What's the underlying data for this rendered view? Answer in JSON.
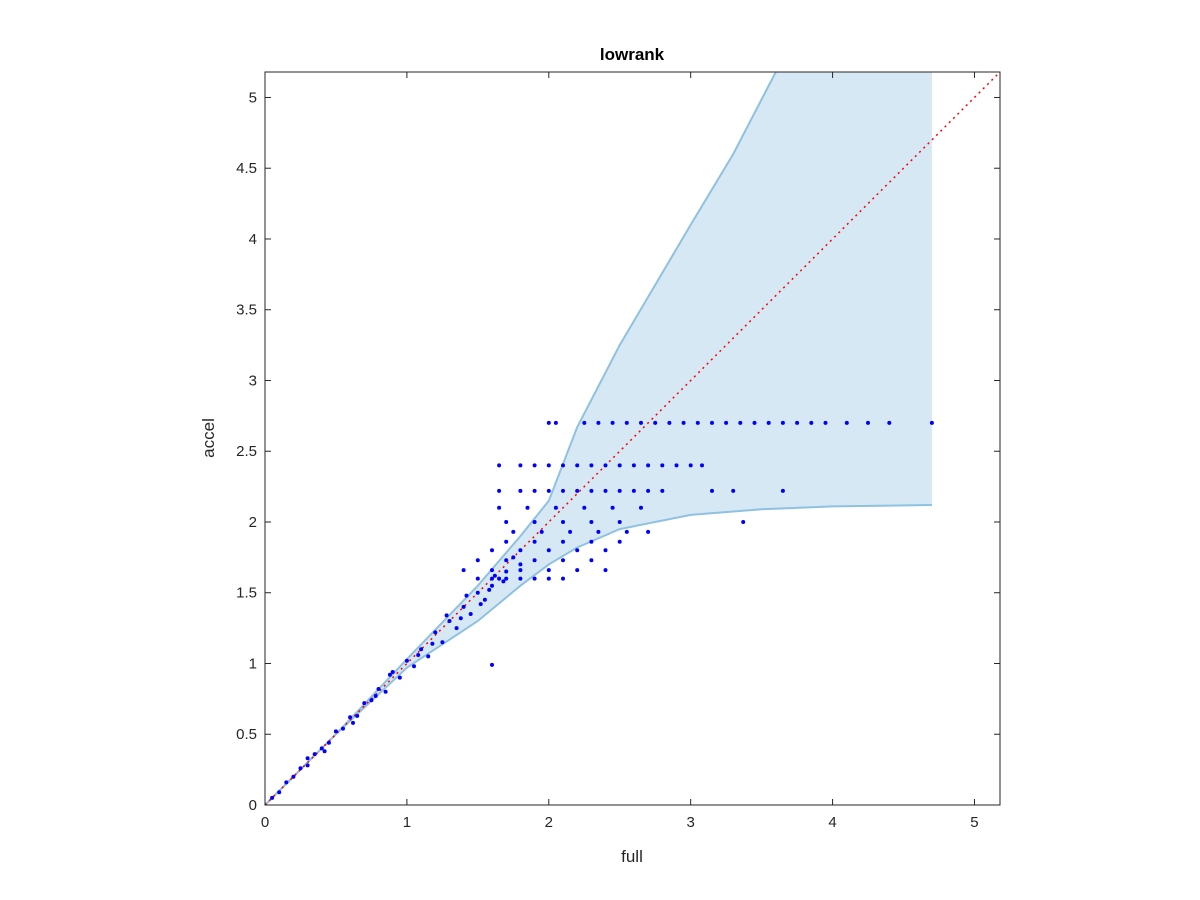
{
  "chart_data": {
    "type": "scatter",
    "title": "lowrank",
    "xlabel": "full",
    "ylabel": "accel",
    "xlim": [
      0,
      5.18
    ],
    "ylim": [
      0,
      5.18
    ],
    "xticks": [
      0,
      1,
      2,
      3,
      4,
      5
    ],
    "yticks": [
      0,
      0.5,
      1,
      1.5,
      2,
      2.5,
      3,
      3.5,
      4,
      4.5,
      5
    ],
    "xtick_labels": [
      "0",
      "1",
      "2",
      "3",
      "4",
      "5"
    ],
    "ytick_labels": [
      "0",
      "0.5",
      "1",
      "1.5",
      "2",
      "2.5",
      "3",
      "3.5",
      "4",
      "4.5",
      "5"
    ],
    "grid": false,
    "box": true,
    "reference_line": {
      "from": [
        0,
        0
      ],
      "to": [
        5.18,
        5.18
      ],
      "style": "dotted",
      "color": "#ff0000"
    },
    "band": {
      "color": "#d6e8f4",
      "edge_color": "#8fc1e0",
      "x_max": 4.7,
      "upper": [
        [
          0,
          0
        ],
        [
          0.5,
          0.5
        ],
        [
          1,
          1.03
        ],
        [
          1.5,
          1.55
        ],
        [
          1.8,
          1.9
        ],
        [
          2,
          2.15
        ],
        [
          2.2,
          2.67
        ],
        [
          2.5,
          3.25
        ],
        [
          3,
          4.1
        ],
        [
          3.3,
          4.6
        ],
        [
          3.6,
          5.18
        ],
        [
          4.7,
          5.18
        ]
      ],
      "lower": [
        [
          0,
          0
        ],
        [
          0.5,
          0.5
        ],
        [
          1,
          0.97
        ],
        [
          1.5,
          1.3
        ],
        [
          1.8,
          1.55
        ],
        [
          2,
          1.7
        ],
        [
          2.2,
          1.82
        ],
        [
          2.5,
          1.95
        ],
        [
          3,
          2.05
        ],
        [
          3.5,
          2.09
        ],
        [
          4,
          2.11
        ],
        [
          4.7,
          2.12
        ]
      ]
    },
    "series": [
      {
        "marker": "dot",
        "color": "#0000ff",
        "points": [
          [
            0.05,
            0.05
          ],
          [
            0.1,
            0.09
          ],
          [
            0.15,
            0.16
          ],
          [
            0.2,
            0.2
          ],
          [
            0.25,
            0.26
          ],
          [
            0.3,
            0.28
          ],
          [
            0.35,
            0.36
          ],
          [
            0.4,
            0.4
          ],
          [
            0.45,
            0.44
          ],
          [
            0.5,
            0.52
          ],
          [
            0.55,
            0.54
          ],
          [
            0.6,
            0.62
          ],
          [
            0.65,
            0.63
          ],
          [
            0.7,
            0.72
          ],
          [
            0.75,
            0.74
          ],
          [
            0.8,
            0.82
          ],
          [
            0.85,
            0.8
          ],
          [
            0.9,
            0.94
          ],
          [
            0.95,
            0.9
          ],
          [
            1.0,
            1.02
          ],
          [
            1.05,
            0.98
          ],
          [
            1.1,
            1.1
          ],
          [
            1.15,
            1.05
          ],
          [
            1.2,
            1.22
          ],
          [
            1.25,
            1.15
          ],
          [
            1.3,
            1.3
          ],
          [
            1.35,
            1.25
          ],
          [
            1.4,
            1.4
          ],
          [
            1.45,
            1.35
          ],
          [
            1.5,
            1.5
          ],
          [
            1.55,
            1.45
          ],
          [
            1.6,
            1.55
          ],
          [
            1.6,
            0.99
          ],
          [
            1.65,
            1.6
          ],
          [
            1.7,
            1.65
          ],
          [
            1.75,
            1.75
          ],
          [
            1.8,
            1.7
          ],
          [
            0.3,
            0.33
          ],
          [
            0.42,
            0.38
          ],
          [
            0.62,
            0.58
          ],
          [
            0.78,
            0.77
          ],
          [
            0.88,
            0.92
          ],
          [
            1.08,
            1.06
          ],
          [
            1.18,
            1.14
          ],
          [
            1.28,
            1.34
          ],
          [
            1.38,
            1.32
          ],
          [
            1.42,
            1.48
          ],
          [
            1.52,
            1.42
          ],
          [
            1.58,
            1.52
          ],
          [
            1.62,
            1.62
          ],
          [
            1.68,
            1.58
          ],
          [
            1.5,
            1.6
          ],
          [
            1.6,
            1.6
          ],
          [
            1.7,
            1.6
          ],
          [
            1.8,
            1.6
          ],
          [
            1.9,
            1.6
          ],
          [
            2.0,
            1.6
          ],
          [
            2.1,
            1.6
          ],
          [
            1.4,
            1.66
          ],
          [
            1.6,
            1.66
          ],
          [
            1.8,
            1.66
          ],
          [
            2.0,
            1.66
          ],
          [
            2.2,
            1.66
          ],
          [
            2.4,
            1.66
          ],
          [
            1.5,
            1.73
          ],
          [
            1.7,
            1.73
          ],
          [
            1.9,
            1.73
          ],
          [
            2.1,
            1.73
          ],
          [
            2.3,
            1.73
          ],
          [
            1.6,
            1.8
          ],
          [
            1.8,
            1.8
          ],
          [
            2.0,
            1.8
          ],
          [
            2.2,
            1.8
          ],
          [
            2.4,
            1.8
          ],
          [
            1.7,
            1.86
          ],
          [
            1.9,
            1.86
          ],
          [
            2.1,
            1.86
          ],
          [
            2.3,
            1.86
          ],
          [
            2.5,
            1.86
          ],
          [
            1.75,
            1.93
          ],
          [
            1.95,
            1.93
          ],
          [
            2.15,
            1.93
          ],
          [
            2.35,
            1.93
          ],
          [
            2.55,
            1.93
          ],
          [
            2.7,
            1.93
          ],
          [
            1.7,
            2.0
          ],
          [
            1.9,
            2.0
          ],
          [
            2.1,
            2.0
          ],
          [
            2.3,
            2.0
          ],
          [
            2.5,
            2.0
          ],
          [
            3.37,
            2.0
          ],
          [
            1.65,
            2.1
          ],
          [
            1.85,
            2.1
          ],
          [
            2.05,
            2.1
          ],
          [
            2.25,
            2.1
          ],
          [
            2.45,
            2.1
          ],
          [
            2.65,
            2.1
          ],
          [
            1.65,
            2.22
          ],
          [
            1.8,
            2.22
          ],
          [
            1.9,
            2.22
          ],
          [
            2.0,
            2.22
          ],
          [
            2.1,
            2.22
          ],
          [
            2.2,
            2.22
          ],
          [
            2.3,
            2.22
          ],
          [
            2.4,
            2.22
          ],
          [
            2.5,
            2.22
          ],
          [
            2.6,
            2.22
          ],
          [
            2.7,
            2.22
          ],
          [
            2.8,
            2.22
          ],
          [
            3.15,
            2.22
          ],
          [
            3.3,
            2.22
          ],
          [
            3.65,
            2.22
          ],
          [
            1.65,
            2.4
          ],
          [
            1.8,
            2.4
          ],
          [
            1.9,
            2.4
          ],
          [
            2.0,
            2.4
          ],
          [
            2.1,
            2.4
          ],
          [
            2.2,
            2.4
          ],
          [
            2.3,
            2.4
          ],
          [
            2.4,
            2.4
          ],
          [
            2.5,
            2.4
          ],
          [
            2.6,
            2.4
          ],
          [
            2.7,
            2.4
          ],
          [
            2.8,
            2.4
          ],
          [
            2.9,
            2.4
          ],
          [
            3.0,
            2.4
          ],
          [
            3.08,
            2.4
          ],
          [
            2.0,
            2.7
          ],
          [
            2.05,
            2.7
          ],
          [
            2.25,
            2.7
          ],
          [
            2.35,
            2.7
          ],
          [
            2.45,
            2.7
          ],
          [
            2.55,
            2.7
          ],
          [
            2.65,
            2.7
          ],
          [
            2.75,
            2.7
          ],
          [
            2.85,
            2.7
          ],
          [
            2.95,
            2.7
          ],
          [
            3.05,
            2.7
          ],
          [
            3.15,
            2.7
          ],
          [
            3.25,
            2.7
          ],
          [
            3.35,
            2.7
          ],
          [
            3.45,
            2.7
          ],
          [
            3.55,
            2.7
          ],
          [
            3.65,
            2.7
          ],
          [
            3.75,
            2.7
          ],
          [
            3.85,
            2.7
          ],
          [
            3.95,
            2.7
          ],
          [
            4.1,
            2.7
          ],
          [
            4.25,
            2.7
          ],
          [
            4.4,
            2.7
          ],
          [
            4.7,
            2.7
          ]
        ]
      }
    ]
  }
}
